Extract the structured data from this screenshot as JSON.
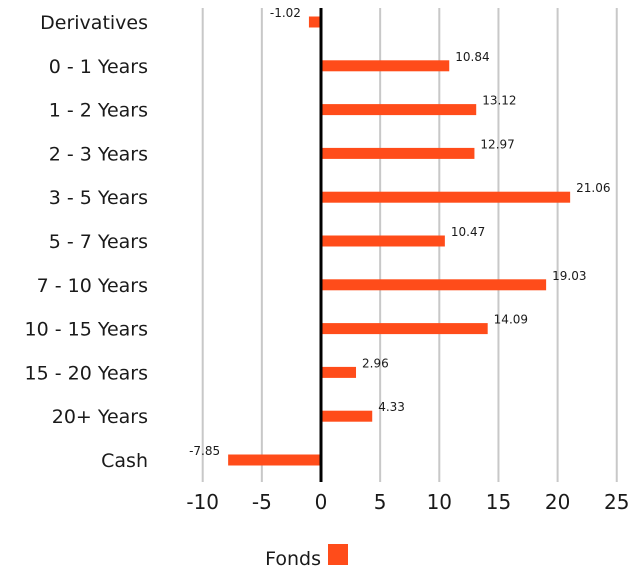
{
  "chart_data": {
    "type": "bar",
    "orientation": "horizontal",
    "categories": [
      "Derivatives",
      "0 - 1 Years",
      "1 - 2 Years",
      "2 - 3 Years",
      "3 - 5 Years",
      "5 - 7 Years",
      "7 - 10 Years",
      "10 - 15 Years",
      "15 - 20 Years",
      "20+ Years",
      "Cash"
    ],
    "series": [
      {
        "name": "Fonds",
        "values": [
          -1.02,
          10.84,
          13.12,
          12.97,
          21.06,
          10.47,
          19.03,
          14.09,
          2.96,
          4.33,
          -7.85
        ],
        "color": "#ff4c1a"
      }
    ],
    "data_labels": [
      "-1.02",
      "10.84",
      "13.12",
      "12.97",
      "21.06",
      "10.47",
      "19.03",
      "14.09",
      "2.96",
      "4.33",
      "-7.85"
    ],
    "xticks": [
      -10,
      -5,
      0,
      5,
      10,
      15,
      20,
      25
    ],
    "xlim": [
      -12,
      25
    ],
    "grid": true,
    "grid_color": "#c8c8c8",
    "zero_line_color": "#000000",
    "legend": {
      "position": "bottom-center",
      "label": "Fonds"
    },
    "title": "",
    "xlabel": "",
    "ylabel": ""
  }
}
